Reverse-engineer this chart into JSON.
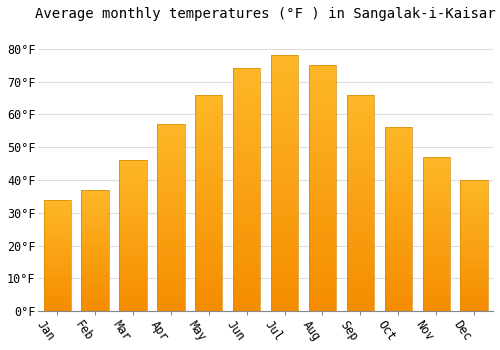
{
  "title": "Average monthly temperatures (°F ) in Sangalak-i-Kaisar",
  "months": [
    "Jan",
    "Feb",
    "Mar",
    "Apr",
    "May",
    "Jun",
    "Jul",
    "Aug",
    "Sep",
    "Oct",
    "Nov",
    "Dec"
  ],
  "values": [
    34,
    37,
    46,
    57,
    66,
    74,
    78,
    75,
    66,
    56,
    47,
    40
  ],
  "bar_color_top": "#FDB827",
  "bar_color_bottom": "#F58C00",
  "background_color": "#FFFFFF",
  "grid_color": "#DDDDDD",
  "ylim": [
    0,
    86
  ],
  "yticks": [
    0,
    10,
    20,
    30,
    40,
    50,
    60,
    70,
    80
  ],
  "ytick_labels": [
    "0°F",
    "10°F",
    "20°F",
    "30°F",
    "40°F",
    "50°F",
    "60°F",
    "70°F",
    "80°F"
  ],
  "title_fontsize": 10,
  "tick_fontsize": 8.5,
  "font_family": "monospace",
  "label_rotation": -55
}
